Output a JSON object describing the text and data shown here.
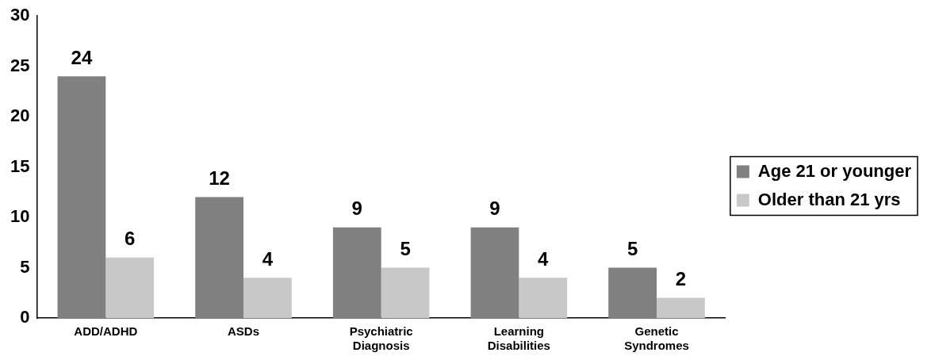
{
  "chart_data": {
    "type": "bar",
    "categories": [
      "ADD/ADHD",
      "ASDs",
      "Psychiatric Diagnosis",
      "Learning Disabilities",
      "Genetic Syndromes"
    ],
    "series": [
      {
        "name": "Age 21 or younger",
        "color": "#808080",
        "values": [
          24,
          12,
          9,
          9,
          5
        ]
      },
      {
        "name": "Older than 21 yrs",
        "color": "#c8c8c8",
        "values": [
          6,
          4,
          5,
          4,
          2
        ]
      }
    ],
    "ylim": [
      0,
      30
    ],
    "yticks": [
      0,
      5,
      10,
      15,
      20,
      25,
      30
    ],
    "grid": false,
    "legend": "right",
    "data_labels": true
  }
}
